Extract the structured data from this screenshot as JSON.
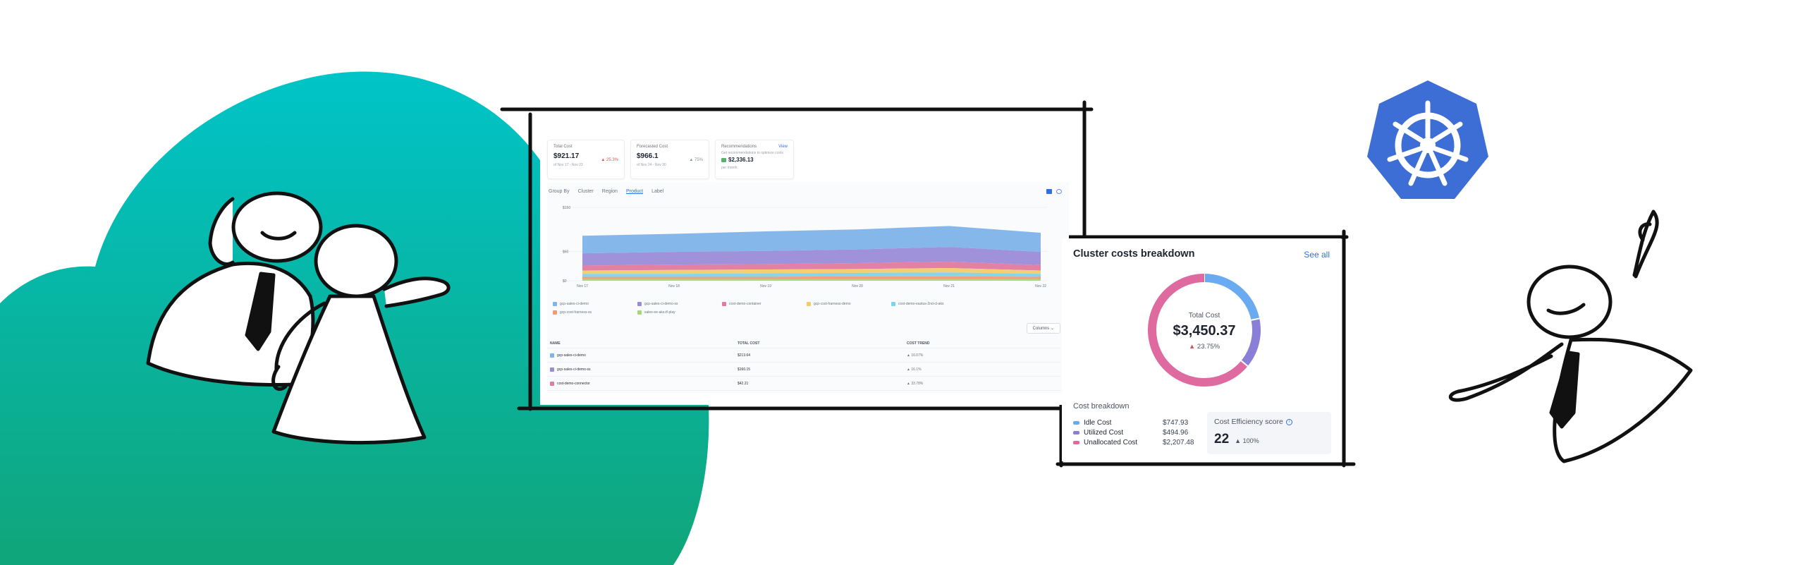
{
  "colors": {
    "cloud_top": "#00c4c8",
    "cloud_bottom": "#10a57a",
    "k8s_blue": "#3c6ed6",
    "accent_blue": "#2f6fe0",
    "trend_up": "#e05252"
  },
  "icons": [
    "kubernetes-helm-icon",
    "stick-figure",
    "cloud-shape",
    "info-icon",
    "bar-chart-icon",
    "settings-icon"
  ],
  "dashboard": {
    "kpis": [
      {
        "label": "Total Cost",
        "value": "$921.17",
        "change": "25.3%",
        "period": "of Nov 17 - Nov 23"
      },
      {
        "label": "Forecasted Cost",
        "value": "$966.1",
        "change": "75%",
        "period": "of Nov 24 - Nov 30"
      }
    ],
    "recommendations": {
      "label": "Recommendations",
      "link": "View",
      "note": "Get recommendations to optimize costs",
      "value": "$2,336.13",
      "unit": "per month"
    },
    "group_by": {
      "label": "Group By",
      "options": [
        "Cluster",
        "Region",
        "Product",
        "Label"
      ],
      "active": "Product"
    },
    "columns_label": "Columns",
    "legend": [
      {
        "name": "gcp-sales-ci-demo",
        "color": "#7fb3ea"
      },
      {
        "name": "gcp-sales-ci-demo-ss",
        "color": "#9b8bd9"
      },
      {
        "name": "cost-demo-container",
        "color": "#e07a9e"
      },
      {
        "name": "gcp-cost-harness-demo",
        "color": "#f2cc6b"
      },
      {
        "name": "cost-demo-eastus-2nd-cl-aks",
        "color": "#7fd3ea"
      },
      {
        "name": "gcp-cost-harness-ss",
        "color": "#f09a7a"
      },
      {
        "name": "sales-ee-aks-tf-play",
        "color": "#a9d67a"
      }
    ],
    "table": {
      "headers": [
        "NAME",
        "TOTAL COST",
        "COST TREND"
      ],
      "rows": [
        {
          "name": "gcp-sales-ci-demo",
          "cost": "$213.64",
          "trend": "16.07%",
          "color": "#7fb3ea"
        },
        {
          "name": "gcp-sales-ci-demo-ss",
          "cost": "$160.15",
          "trend": "16.1%",
          "color": "#9b8bd9"
        },
        {
          "name": "cost-demo-connector",
          "cost": "$42.21",
          "trend": "33.78%",
          "color": "#e07a9e"
        }
      ]
    }
  },
  "chart_data": {
    "type": "area",
    "stacked": true,
    "title": "",
    "x": [
      "Nov 17",
      "Nov 18",
      "Nov 19",
      "Nov 20",
      "Nov 21",
      "Nov 22"
    ],
    "y_ticks": [
      "$150",
      "$60",
      "$0"
    ],
    "ylim": [
      0,
      150
    ],
    "grid": true,
    "series": [
      {
        "name": "sales-ee-aks-tf-play",
        "values": [
          3,
          3,
          3,
          3,
          3,
          3
        ]
      },
      {
        "name": "gcp-cost-harness-ss",
        "values": [
          5,
          5,
          5,
          6,
          6,
          5
        ]
      },
      {
        "name": "cost-demo-eastus-2nd-cl-aks",
        "values": [
          6,
          6,
          7,
          7,
          8,
          6
        ]
      },
      {
        "name": "gcp-cost-harness-demo",
        "values": [
          7,
          8,
          8,
          8,
          9,
          7
        ]
      },
      {
        "name": "cost-demo-container",
        "values": [
          10,
          11,
          11,
          12,
          13,
          11
        ]
      },
      {
        "name": "gcp-sales-ci-demo-ss",
        "values": [
          25,
          26,
          27,
          28,
          30,
          27
        ]
      },
      {
        "name": "gcp-sales-ci-demo",
        "values": [
          36,
          37,
          40,
          41,
          43,
          39
        ]
      }
    ]
  },
  "cluster": {
    "title": "Cluster costs breakdown",
    "see_all": "See all",
    "total_label": "Total Cost",
    "total_value": "$3,450.37",
    "total_change": "23.75%",
    "breakdown_title": "Cost breakdown",
    "breakdown": [
      {
        "label": "Idle Cost",
        "value": "$747.93",
        "amount": 747.93,
        "color": "#6aaaf0"
      },
      {
        "label": "Utilized Cost",
        "value": "$494.96",
        "amount": 494.96,
        "color": "#8a7fd6"
      },
      {
        "label": "Unallocated Cost",
        "value": "$2,207.48",
        "amount": 2207.48,
        "color": "#de6aa0"
      }
    ],
    "efficiency": {
      "label": "Cost Efficiency score",
      "value": "22",
      "change": "100%"
    }
  }
}
